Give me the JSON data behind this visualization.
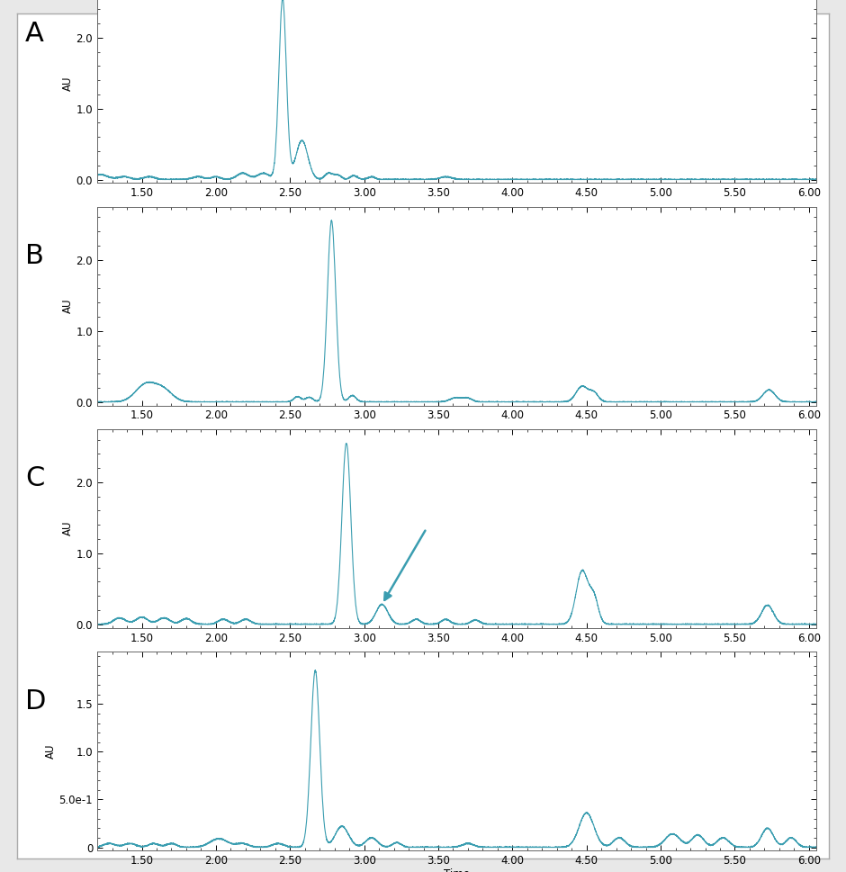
{
  "line_color": "#3a9db0",
  "bg_color": "#ffffff",
  "border_color": "#cccccc",
  "label_fontsize": 13,
  "tick_fontsize": 8.5,
  "ylabel_fontsize": 8.5,
  "panel_labels": [
    "A",
    "B",
    "C",
    "D"
  ],
  "panel_label_fontsize": 22,
  "xmin": 1.2,
  "xmax": 6.05,
  "panels": [
    {
      "yticks": [
        0.0,
        1.0,
        2.0
      ],
      "ylim": [
        -0.05,
        2.75
      ]
    },
    {
      "yticks": [
        0.0,
        1.0,
        2.0
      ],
      "ylim": [
        -0.05,
        2.75
      ]
    },
    {
      "yticks": [
        0.0,
        1.0,
        2.0
      ],
      "ylim": [
        -0.05,
        2.75
      ]
    },
    {
      "yticks": [
        0.0,
        0.5,
        1.0,
        1.5
      ],
      "ylim": [
        -0.03,
        2.05
      ]
    }
  ],
  "xticks": [
    1.5,
    2.0,
    2.5,
    3.0,
    3.5,
    4.0,
    4.5,
    5.0,
    5.5,
    6.0
  ]
}
